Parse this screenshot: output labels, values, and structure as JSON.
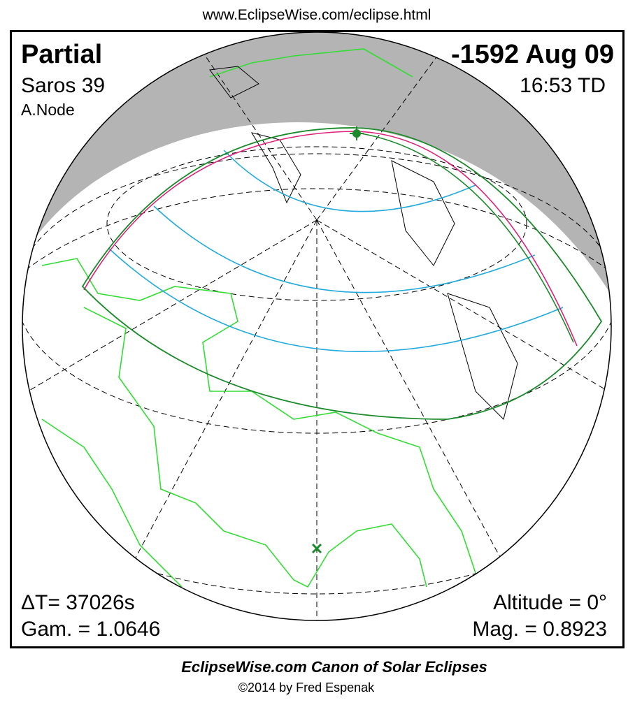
{
  "header": {
    "url": "www.EclipseWise.com/eclipse.html"
  },
  "panel": {
    "type": "Partial",
    "saros": "Saros  39",
    "node": "A.Node",
    "date": "-1592 Aug 09",
    "time": "16:53 TD",
    "delta_t": "ΔT=  37026s",
    "gamma": "Gam. = 1.0646",
    "altitude": "Altitude =  0°",
    "magnitude": "Mag. = 0.8923"
  },
  "footer": {
    "title": "EclipseWise.com Canon of Solar Eclipses",
    "copyright": "©2014 by Fred Espenak"
  }
}
